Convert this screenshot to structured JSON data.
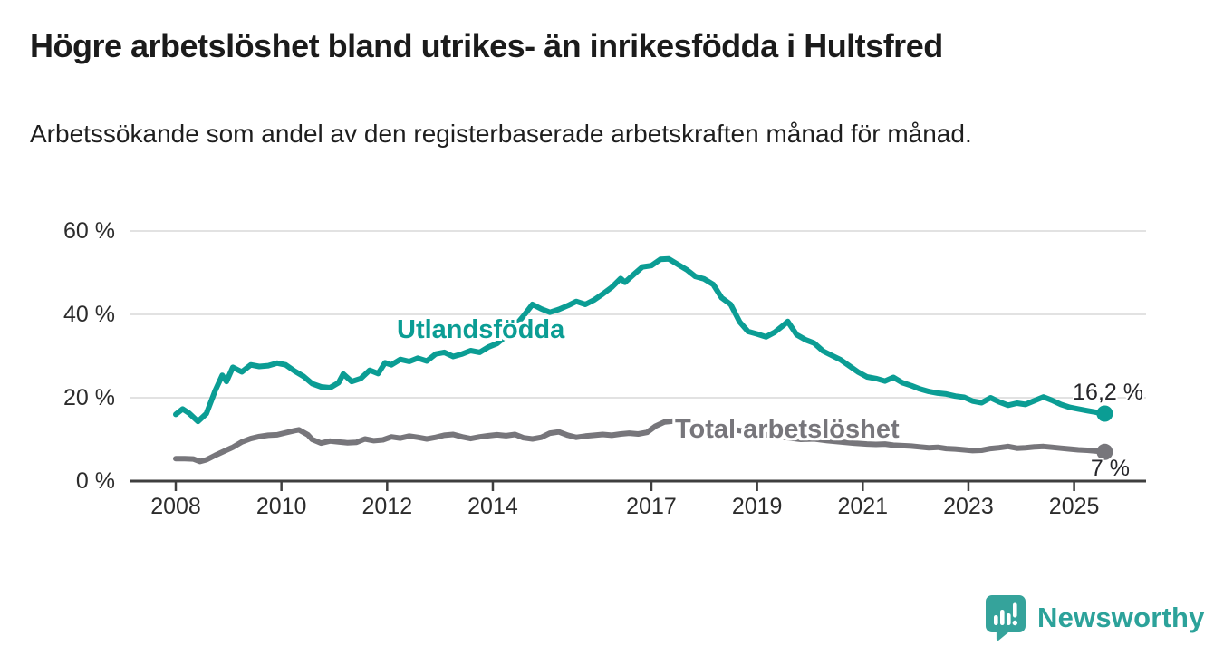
{
  "header": {
    "title": "Högre arbetslöshet bland utrikes- än inrikesfödda i Hultsfred",
    "subtitle": "Arbetssökande som andel av den registerbaserade arbetskraften månad för månad."
  },
  "chart_data": {
    "type": "line",
    "title": "Högre arbetslöshet bland utrikes- än inrikesfödda i Hultsfred",
    "xlabel": "",
    "ylabel": "",
    "x_range": [
      2008,
      2025.58
    ],
    "ylim": [
      0,
      62
    ],
    "grid": "horizontal",
    "legend_position": "inline-labels",
    "colors": {
      "grid": "#e2e2e2",
      "axis": "#3f3f3f"
    },
    "x_axis": {
      "ticks": [
        {
          "label": "2008",
          "year": 2008
        },
        {
          "label": "2010",
          "year": 2010
        },
        {
          "label": "2012",
          "year": 2012
        },
        {
          "label": "2014",
          "year": 2014
        },
        {
          "label": "2017",
          "year": 2017
        },
        {
          "label": "2019",
          "year": 2019
        },
        {
          "label": "2021",
          "year": 2021
        },
        {
          "label": "2023",
          "year": 2023
        },
        {
          "label": "2025",
          "year": 2025
        }
      ]
    },
    "y_axis": {
      "ticks": [
        {
          "label": "60 %",
          "value": 60
        },
        {
          "label": "40 %",
          "value": 40
        },
        {
          "label": "20 %",
          "value": 20
        },
        {
          "label": "0 %",
          "value": 0
        }
      ]
    },
    "series": [
      {
        "name": "Utlandsfödda",
        "color": "#0b9d94",
        "end_label": "16,2 %",
        "end_value": 16.2,
        "points": [
          [
            2008.0,
            16.0
          ],
          [
            2008.13,
            17.3
          ],
          [
            2008.25,
            16.3
          ],
          [
            2008.42,
            14.3
          ],
          [
            2008.58,
            16.2
          ],
          [
            2008.75,
            21.8
          ],
          [
            2008.88,
            25.4
          ],
          [
            2008.96,
            23.9
          ],
          [
            2009.08,
            27.3
          ],
          [
            2009.25,
            26.2
          ],
          [
            2009.42,
            27.9
          ],
          [
            2009.58,
            27.5
          ],
          [
            2009.75,
            27.7
          ],
          [
            2009.92,
            28.3
          ],
          [
            2010.08,
            27.9
          ],
          [
            2010.25,
            26.4
          ],
          [
            2010.42,
            25.1
          ],
          [
            2010.58,
            23.4
          ],
          [
            2010.75,
            22.6
          ],
          [
            2010.92,
            22.4
          ],
          [
            2011.08,
            23.6
          ],
          [
            2011.17,
            25.7
          ],
          [
            2011.33,
            23.9
          ],
          [
            2011.5,
            24.6
          ],
          [
            2011.67,
            26.6
          ],
          [
            2011.83,
            25.8
          ],
          [
            2011.96,
            28.4
          ],
          [
            2012.08,
            27.9
          ],
          [
            2012.25,
            29.2
          ],
          [
            2012.42,
            28.7
          ],
          [
            2012.58,
            29.5
          ],
          [
            2012.75,
            28.8
          ],
          [
            2012.92,
            30.5
          ],
          [
            2013.08,
            30.9
          ],
          [
            2013.25,
            29.9
          ],
          [
            2013.42,
            30.5
          ],
          [
            2013.58,
            31.3
          ],
          [
            2013.75,
            30.9
          ],
          [
            2013.92,
            32.2
          ],
          [
            2014.08,
            33.0
          ],
          [
            2014.25,
            34.8
          ],
          [
            2014.42,
            37.2
          ],
          [
            2014.58,
            39.6
          ],
          [
            2014.75,
            42.4
          ],
          [
            2014.92,
            41.3
          ],
          [
            2015.08,
            40.5
          ],
          [
            2015.25,
            41.2
          ],
          [
            2015.42,
            42.1
          ],
          [
            2015.58,
            43.1
          ],
          [
            2015.75,
            42.4
          ],
          [
            2015.92,
            43.5
          ],
          [
            2016.08,
            44.9
          ],
          [
            2016.25,
            46.5
          ],
          [
            2016.42,
            48.6
          ],
          [
            2016.5,
            47.7
          ],
          [
            2016.67,
            49.6
          ],
          [
            2016.83,
            51.4
          ],
          [
            2017.0,
            51.7
          ],
          [
            2017.17,
            53.2
          ],
          [
            2017.33,
            53.3
          ],
          [
            2017.5,
            52.0
          ],
          [
            2017.67,
            50.7
          ],
          [
            2017.83,
            49.1
          ],
          [
            2018.0,
            48.5
          ],
          [
            2018.17,
            47.2
          ],
          [
            2018.33,
            44.0
          ],
          [
            2018.5,
            42.4
          ],
          [
            2018.67,
            38.2
          ],
          [
            2018.83,
            35.9
          ],
          [
            2019.0,
            35.3
          ],
          [
            2019.17,
            34.6
          ],
          [
            2019.33,
            35.7
          ],
          [
            2019.5,
            37.4
          ],
          [
            2019.58,
            38.3
          ],
          [
            2019.75,
            35.1
          ],
          [
            2019.92,
            33.9
          ],
          [
            2020.08,
            33.1
          ],
          [
            2020.25,
            31.2
          ],
          [
            2020.42,
            30.1
          ],
          [
            2020.58,
            29.1
          ],
          [
            2020.75,
            27.6
          ],
          [
            2020.92,
            26.1
          ],
          [
            2021.08,
            25.0
          ],
          [
            2021.25,
            24.6
          ],
          [
            2021.42,
            24.0
          ],
          [
            2021.58,
            24.9
          ],
          [
            2021.75,
            23.6
          ],
          [
            2021.92,
            22.9
          ],
          [
            2022.08,
            22.1
          ],
          [
            2022.25,
            21.5
          ],
          [
            2022.42,
            21.1
          ],
          [
            2022.58,
            20.9
          ],
          [
            2022.75,
            20.4
          ],
          [
            2022.92,
            20.1
          ],
          [
            2023.08,
            19.2
          ],
          [
            2023.25,
            18.8
          ],
          [
            2023.42,
            20.0
          ],
          [
            2023.58,
            19.0
          ],
          [
            2023.75,
            18.2
          ],
          [
            2023.92,
            18.7
          ],
          [
            2024.08,
            18.4
          ],
          [
            2024.25,
            19.3
          ],
          [
            2024.42,
            20.2
          ],
          [
            2024.58,
            19.4
          ],
          [
            2024.75,
            18.4
          ],
          [
            2024.92,
            17.7
          ],
          [
            2025.08,
            17.3
          ],
          [
            2025.25,
            16.9
          ],
          [
            2025.42,
            16.5
          ],
          [
            2025.58,
            16.2
          ]
        ]
      },
      {
        "name": "Total arbetslöshet",
        "color": "#77767b",
        "end_label": "7 %",
        "end_value": 7.0,
        "points": [
          [
            2008.0,
            5.4
          ],
          [
            2008.17,
            5.4
          ],
          [
            2008.33,
            5.3
          ],
          [
            2008.46,
            4.7
          ],
          [
            2008.58,
            5.1
          ],
          [
            2008.75,
            6.2
          ],
          [
            2008.92,
            7.2
          ],
          [
            2009.08,
            8.1
          ],
          [
            2009.25,
            9.4
          ],
          [
            2009.42,
            10.2
          ],
          [
            2009.58,
            10.7
          ],
          [
            2009.75,
            11.0
          ],
          [
            2009.92,
            11.1
          ],
          [
            2010.08,
            11.6
          ],
          [
            2010.25,
            12.1
          ],
          [
            2010.33,
            12.3
          ],
          [
            2010.5,
            11.1
          ],
          [
            2010.58,
            10.0
          ],
          [
            2010.75,
            9.1
          ],
          [
            2010.92,
            9.6
          ],
          [
            2011.08,
            9.4
          ],
          [
            2011.25,
            9.2
          ],
          [
            2011.42,
            9.3
          ],
          [
            2011.58,
            10.1
          ],
          [
            2011.75,
            9.7
          ],
          [
            2011.92,
            9.9
          ],
          [
            2012.08,
            10.6
          ],
          [
            2012.25,
            10.3
          ],
          [
            2012.42,
            10.8
          ],
          [
            2012.58,
            10.5
          ],
          [
            2012.75,
            10.1
          ],
          [
            2012.92,
            10.5
          ],
          [
            2013.08,
            11.0
          ],
          [
            2013.25,
            11.2
          ],
          [
            2013.42,
            10.6
          ],
          [
            2013.58,
            10.2
          ],
          [
            2013.75,
            10.6
          ],
          [
            2013.92,
            10.9
          ],
          [
            2014.08,
            11.1
          ],
          [
            2014.25,
            10.9
          ],
          [
            2014.42,
            11.2
          ],
          [
            2014.58,
            10.4
          ],
          [
            2014.75,
            10.1
          ],
          [
            2014.92,
            10.5
          ],
          [
            2015.08,
            11.5
          ],
          [
            2015.25,
            11.8
          ],
          [
            2015.42,
            11.0
          ],
          [
            2015.58,
            10.5
          ],
          [
            2015.75,
            10.8
          ],
          [
            2015.92,
            11.0
          ],
          [
            2016.08,
            11.2
          ],
          [
            2016.25,
            11.0
          ],
          [
            2016.42,
            11.3
          ],
          [
            2016.58,
            11.5
          ],
          [
            2016.75,
            11.3
          ],
          [
            2016.92,
            11.7
          ],
          [
            2017.08,
            13.2
          ],
          [
            2017.25,
            14.2
          ],
          [
            2017.42,
            14.4
          ],
          [
            2017.58,
            14.1
          ],
          [
            2017.83,
            13.7
          ],
          [
            2018.08,
            13.2
          ],
          [
            2018.33,
            12.8
          ],
          [
            2018.58,
            12.3
          ],
          [
            2018.83,
            11.8
          ],
          [
            2019.08,
            11.3
          ],
          [
            2019.33,
            10.8
          ],
          [
            2019.58,
            10.4
          ],
          [
            2019.83,
            10.0
          ],
          [
            2020.08,
            10.1
          ],
          [
            2020.33,
            9.7
          ],
          [
            2020.58,
            9.4
          ],
          [
            2020.83,
            9.1
          ],
          [
            2021.08,
            8.9
          ],
          [
            2021.25,
            8.8
          ],
          [
            2021.42,
            8.9
          ],
          [
            2021.58,
            8.6
          ],
          [
            2021.75,
            8.5
          ],
          [
            2021.92,
            8.4
          ],
          [
            2022.08,
            8.2
          ],
          [
            2022.25,
            8.0
          ],
          [
            2022.42,
            8.1
          ],
          [
            2022.58,
            7.8
          ],
          [
            2022.75,
            7.7
          ],
          [
            2022.92,
            7.5
          ],
          [
            2023.08,
            7.3
          ],
          [
            2023.25,
            7.4
          ],
          [
            2023.42,
            7.8
          ],
          [
            2023.58,
            8.0
          ],
          [
            2023.75,
            8.3
          ],
          [
            2023.92,
            7.9
          ],
          [
            2024.08,
            8.0
          ],
          [
            2024.25,
            8.2
          ],
          [
            2024.42,
            8.3
          ],
          [
            2024.58,
            8.1
          ],
          [
            2024.75,
            7.9
          ],
          [
            2024.92,
            7.7
          ],
          [
            2025.08,
            7.5
          ],
          [
            2025.25,
            7.4
          ],
          [
            2025.42,
            7.2
          ],
          [
            2025.58,
            7.0
          ]
        ]
      }
    ]
  },
  "footer": {
    "brand": "Newsworthy",
    "logo_color": "#35a39b",
    "brand_text_color": "#2ca29a"
  }
}
